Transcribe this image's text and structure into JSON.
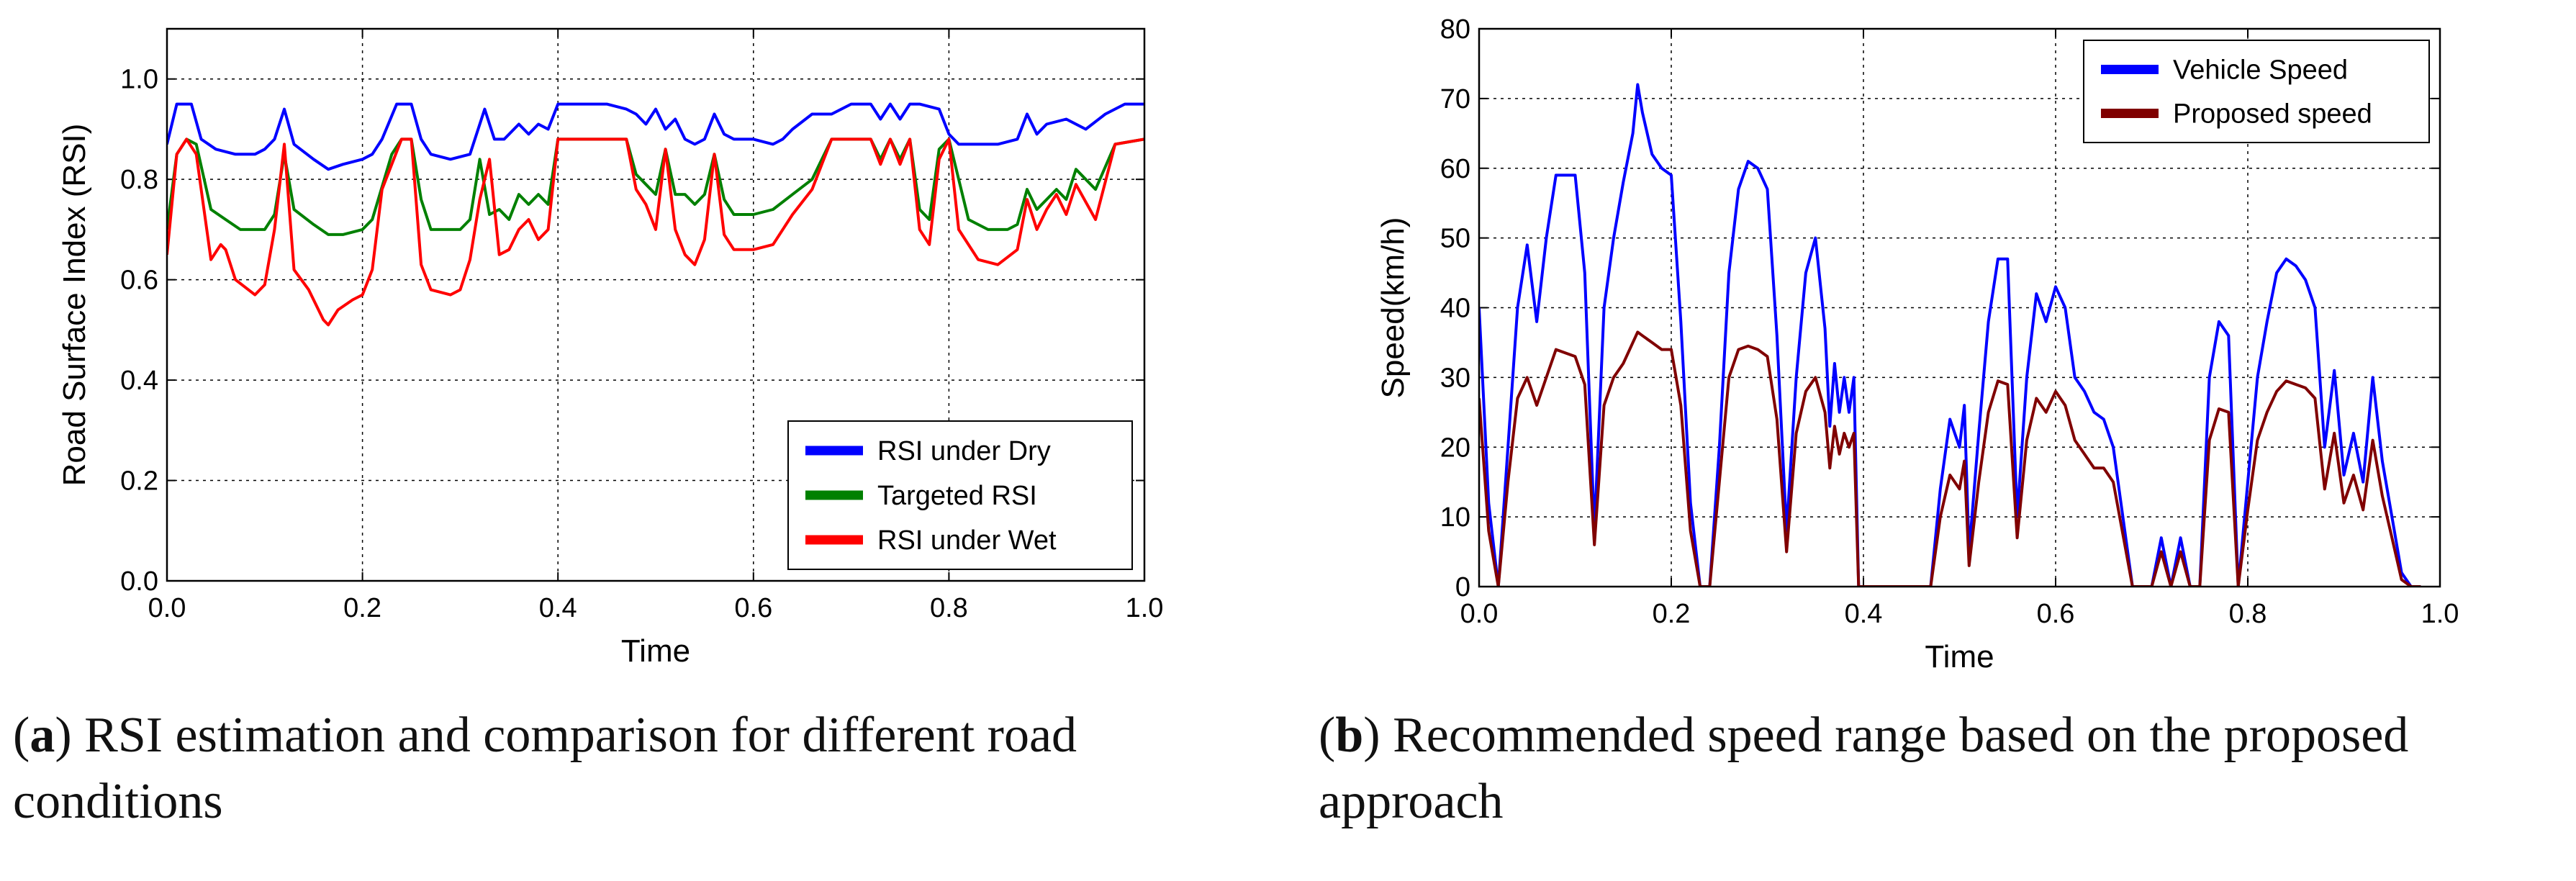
{
  "chart_data": [
    {
      "id": "a",
      "type": "line",
      "title": "",
      "xlabel": "Time",
      "ylabel": "Road Surface Index (RSI)",
      "xlim": [
        0.0,
        1.0
      ],
      "ylim": [
        0.0,
        1.1
      ],
      "xticks": [
        "0.0",
        "0.2",
        "0.4",
        "0.6",
        "0.8",
        "1.0"
      ],
      "yticks": [
        "0.0",
        "0.2",
        "0.4",
        "0.6",
        "0.8",
        "1.0"
      ],
      "grid": true,
      "legend_position": "bottom-right",
      "series": [
        {
          "name": "RSI under Dry",
          "color": "#0000ff",
          "x": [
            0.0,
            0.01,
            0.025,
            0.035,
            0.05,
            0.07,
            0.09,
            0.1,
            0.11,
            0.12,
            0.13,
            0.15,
            0.165,
            0.18,
            0.2,
            0.21,
            0.22,
            0.235,
            0.25,
            0.26,
            0.27,
            0.29,
            0.31,
            0.325,
            0.335,
            0.345,
            0.36,
            0.37,
            0.38,
            0.39,
            0.4,
            0.45,
            0.47,
            0.48,
            0.49,
            0.5,
            0.51,
            0.52,
            0.53,
            0.54,
            0.55,
            0.56,
            0.57,
            0.58,
            0.6,
            0.62,
            0.63,
            0.64,
            0.66,
            0.68,
            0.7,
            0.72,
            0.73,
            0.74,
            0.75,
            0.76,
            0.77,
            0.79,
            0.8,
            0.81,
            0.83,
            0.85,
            0.87,
            0.88,
            0.89,
            0.9,
            0.92,
            0.94,
            0.96,
            0.98,
            1.0
          ],
          "values": [
            0.87,
            0.95,
            0.95,
            0.88,
            0.86,
            0.85,
            0.85,
            0.86,
            0.88,
            0.94,
            0.87,
            0.84,
            0.82,
            0.83,
            0.84,
            0.85,
            0.88,
            0.95,
            0.95,
            0.88,
            0.85,
            0.84,
            0.85,
            0.94,
            0.88,
            0.88,
            0.91,
            0.89,
            0.91,
            0.9,
            0.95,
            0.95,
            0.94,
            0.93,
            0.91,
            0.94,
            0.9,
            0.92,
            0.88,
            0.87,
            0.88,
            0.93,
            0.89,
            0.88,
            0.88,
            0.87,
            0.88,
            0.9,
            0.93,
            0.93,
            0.95,
            0.95,
            0.92,
            0.95,
            0.92,
            0.95,
            0.95,
            0.94,
            0.89,
            0.87,
            0.87,
            0.87,
            0.88,
            0.93,
            0.89,
            0.91,
            0.92,
            0.9,
            0.93,
            0.95,
            0.95
          ]
        },
        {
          "name": "Targeted RSI",
          "color": "#008000",
          "x": [
            0.0,
            0.01,
            0.02,
            0.03,
            0.045,
            0.06,
            0.075,
            0.1,
            0.11,
            0.12,
            0.13,
            0.15,
            0.165,
            0.18,
            0.2,
            0.21,
            0.23,
            0.24,
            0.25,
            0.26,
            0.27,
            0.3,
            0.31,
            0.32,
            0.33,
            0.34,
            0.35,
            0.36,
            0.37,
            0.38,
            0.39,
            0.4,
            0.47,
            0.48,
            0.49,
            0.5,
            0.51,
            0.52,
            0.53,
            0.54,
            0.55,
            0.56,
            0.57,
            0.58,
            0.6,
            0.62,
            0.64,
            0.66,
            0.68,
            0.7,
            0.72,
            0.73,
            0.74,
            0.75,
            0.76,
            0.77,
            0.78,
            0.79,
            0.8,
            0.82,
            0.84,
            0.86,
            0.87,
            0.88,
            0.89,
            0.9,
            0.91,
            0.92,
            0.93,
            0.95,
            0.97,
            1.0
          ],
          "values": [
            0.7,
            0.85,
            0.88,
            0.87,
            0.74,
            0.72,
            0.7,
            0.7,
            0.73,
            0.85,
            0.74,
            0.71,
            0.69,
            0.69,
            0.7,
            0.72,
            0.85,
            0.88,
            0.88,
            0.76,
            0.7,
            0.7,
            0.72,
            0.84,
            0.73,
            0.74,
            0.72,
            0.77,
            0.75,
            0.77,
            0.75,
            0.88,
            0.88,
            0.81,
            0.79,
            0.77,
            0.86,
            0.77,
            0.77,
            0.75,
            0.77,
            0.85,
            0.76,
            0.73,
            0.73,
            0.74,
            0.77,
            0.8,
            0.88,
            0.88,
            0.88,
            0.84,
            0.88,
            0.84,
            0.88,
            0.74,
            0.72,
            0.86,
            0.88,
            0.72,
            0.7,
            0.7,
            0.71,
            0.78,
            0.74,
            0.76,
            0.78,
            0.76,
            0.82,
            0.78,
            0.87,
            0.88
          ]
        },
        {
          "name": "RSI under Wet",
          "color": "#ff0000",
          "x": [
            0.0,
            0.01,
            0.02,
            0.03,
            0.045,
            0.055,
            0.06,
            0.07,
            0.09,
            0.1,
            0.11,
            0.12,
            0.13,
            0.145,
            0.16,
            0.165,
            0.175,
            0.19,
            0.2,
            0.21,
            0.22,
            0.24,
            0.25,
            0.26,
            0.27,
            0.29,
            0.3,
            0.31,
            0.32,
            0.33,
            0.34,
            0.35,
            0.36,
            0.37,
            0.38,
            0.39,
            0.4,
            0.47,
            0.48,
            0.49,
            0.5,
            0.51,
            0.52,
            0.53,
            0.54,
            0.55,
            0.56,
            0.57,
            0.58,
            0.6,
            0.62,
            0.64,
            0.66,
            0.68,
            0.7,
            0.72,
            0.73,
            0.74,
            0.75,
            0.76,
            0.77,
            0.78,
            0.79,
            0.8,
            0.81,
            0.83,
            0.85,
            0.87,
            0.88,
            0.89,
            0.9,
            0.91,
            0.92,
            0.93,
            0.95,
            0.97,
            1.0
          ],
          "values": [
            0.65,
            0.85,
            0.88,
            0.85,
            0.64,
            0.67,
            0.66,
            0.6,
            0.57,
            0.59,
            0.7,
            0.87,
            0.62,
            0.58,
            0.52,
            0.51,
            0.54,
            0.56,
            0.57,
            0.62,
            0.78,
            0.88,
            0.88,
            0.63,
            0.58,
            0.57,
            0.58,
            0.64,
            0.76,
            0.84,
            0.65,
            0.66,
            0.7,
            0.72,
            0.68,
            0.7,
            0.88,
            0.88,
            0.78,
            0.75,
            0.7,
            0.86,
            0.7,
            0.65,
            0.63,
            0.68,
            0.85,
            0.69,
            0.66,
            0.66,
            0.67,
            0.73,
            0.78,
            0.88,
            0.88,
            0.88,
            0.83,
            0.88,
            0.83,
            0.88,
            0.7,
            0.67,
            0.84,
            0.88,
            0.7,
            0.64,
            0.63,
            0.66,
            0.76,
            0.7,
            0.74,
            0.77,
            0.73,
            0.79,
            0.72,
            0.87,
            0.88
          ]
        }
      ]
    },
    {
      "id": "b",
      "type": "line",
      "title": "",
      "xlabel": "Time",
      "ylabel": "Speed(km/h)",
      "xlim": [
        0.0,
        1.0
      ],
      "ylim": [
        0,
        80
      ],
      "xticks": [
        "0.0",
        "0.2",
        "0.4",
        "0.6",
        "0.8",
        "1.0"
      ],
      "yticks": [
        "0",
        "10",
        "20",
        "30",
        "40",
        "50",
        "60",
        "70",
        "80"
      ],
      "grid": true,
      "legend_position": "top-right",
      "series": [
        {
          "name": "Vehicle Speed",
          "color": "#0000ff",
          "x": [
            0.0,
            0.01,
            0.02,
            0.03,
            0.04,
            0.05,
            0.06,
            0.07,
            0.08,
            0.1,
            0.11,
            0.12,
            0.13,
            0.14,
            0.15,
            0.16,
            0.165,
            0.17,
            0.18,
            0.19,
            0.2,
            0.21,
            0.22,
            0.23,
            0.24,
            0.25,
            0.26,
            0.27,
            0.28,
            0.29,
            0.3,
            0.31,
            0.32,
            0.33,
            0.34,
            0.35,
            0.36,
            0.365,
            0.37,
            0.375,
            0.38,
            0.385,
            0.39,
            0.395,
            0.4,
            0.47,
            0.48,
            0.49,
            0.5,
            0.505,
            0.51,
            0.52,
            0.53,
            0.54,
            0.55,
            0.56,
            0.57,
            0.58,
            0.59,
            0.6,
            0.61,
            0.62,
            0.63,
            0.64,
            0.65,
            0.66,
            0.68,
            0.7,
            0.71,
            0.72,
            0.73,
            0.74,
            0.75,
            0.76,
            0.77,
            0.78,
            0.79,
            0.8,
            0.81,
            0.82,
            0.83,
            0.84,
            0.85,
            0.86,
            0.87,
            0.88,
            0.89,
            0.9,
            0.91,
            0.92,
            0.93,
            0.94,
            0.95,
            0.96,
            0.97,
            0.98
          ],
          "values": [
            40,
            12,
            0,
            20,
            40,
            49,
            38,
            50,
            59,
            59,
            45,
            8,
            40,
            50,
            58,
            65,
            72,
            68,
            62,
            60,
            59,
            38,
            12,
            0,
            0,
            20,
            45,
            57,
            61,
            60,
            57,
            36,
            8,
            30,
            45,
            50,
            37,
            23,
            32,
            25,
            30,
            25,
            30,
            0,
            0,
            0,
            14,
            24,
            20,
            26,
            5,
            22,
            38,
            47,
            47,
            10,
            30,
            42,
            38,
            43,
            40,
            30,
            28,
            25,
            24,
            20,
            0,
            0,
            7,
            0,
            7,
            0,
            0,
            30,
            38,
            36,
            0,
            15,
            30,
            38,
            45,
            47,
            46,
            44,
            40,
            20,
            31,
            16,
            22,
            15,
            30,
            18,
            10,
            2,
            0,
            0
          ]
        },
        {
          "name": "Proposed speed",
          "color": "#800000",
          "x": [
            0.0,
            0.01,
            0.02,
            0.03,
            0.04,
            0.05,
            0.06,
            0.07,
            0.08,
            0.1,
            0.11,
            0.12,
            0.13,
            0.14,
            0.15,
            0.16,
            0.165,
            0.17,
            0.18,
            0.19,
            0.2,
            0.21,
            0.22,
            0.23,
            0.24,
            0.25,
            0.26,
            0.27,
            0.28,
            0.29,
            0.3,
            0.31,
            0.32,
            0.33,
            0.34,
            0.35,
            0.36,
            0.365,
            0.37,
            0.375,
            0.38,
            0.385,
            0.39,
            0.395,
            0.4,
            0.47,
            0.48,
            0.49,
            0.5,
            0.505,
            0.51,
            0.52,
            0.53,
            0.54,
            0.55,
            0.56,
            0.57,
            0.58,
            0.59,
            0.6,
            0.61,
            0.62,
            0.63,
            0.64,
            0.65,
            0.66,
            0.68,
            0.7,
            0.71,
            0.72,
            0.73,
            0.74,
            0.75,
            0.76,
            0.77,
            0.78,
            0.79,
            0.8,
            0.81,
            0.82,
            0.83,
            0.84,
            0.85,
            0.86,
            0.87,
            0.88,
            0.89,
            0.9,
            0.91,
            0.92,
            0.93,
            0.94,
            0.95,
            0.96,
            0.97,
            0.98
          ],
          "values": [
            27,
            8,
            0,
            15,
            27,
            30,
            26,
            30,
            34,
            33,
            29,
            6,
            26,
            30,
            32,
            35,
            36.5,
            36,
            35,
            34,
            34,
            26,
            8,
            0,
            0,
            15,
            30,
            34,
            34.5,
            34,
            33,
            24,
            5,
            22,
            28,
            30,
            25,
            17,
            23,
            19,
            22,
            20,
            22,
            0,
            0,
            0,
            10,
            16,
            14,
            18,
            3,
            15,
            25,
            29.5,
            29,
            7,
            21,
            27,
            25,
            28,
            26,
            21,
            19,
            17,
            17,
            15,
            0,
            0,
            5,
            0,
            5,
            0,
            0,
            21,
            25.5,
            25,
            0,
            11,
            21,
            25,
            28,
            29.5,
            29,
            28.5,
            27,
            14,
            22,
            12,
            16,
            11,
            21,
            13,
            7,
            1,
            0,
            0
          ]
        }
      ]
    }
  ],
  "captions": {
    "a_letter": "a",
    "a_text": " RSI estimation and comparison for different road conditions",
    "b_letter": "b",
    "b_text": " Recommended speed range based on the proposed approach"
  }
}
